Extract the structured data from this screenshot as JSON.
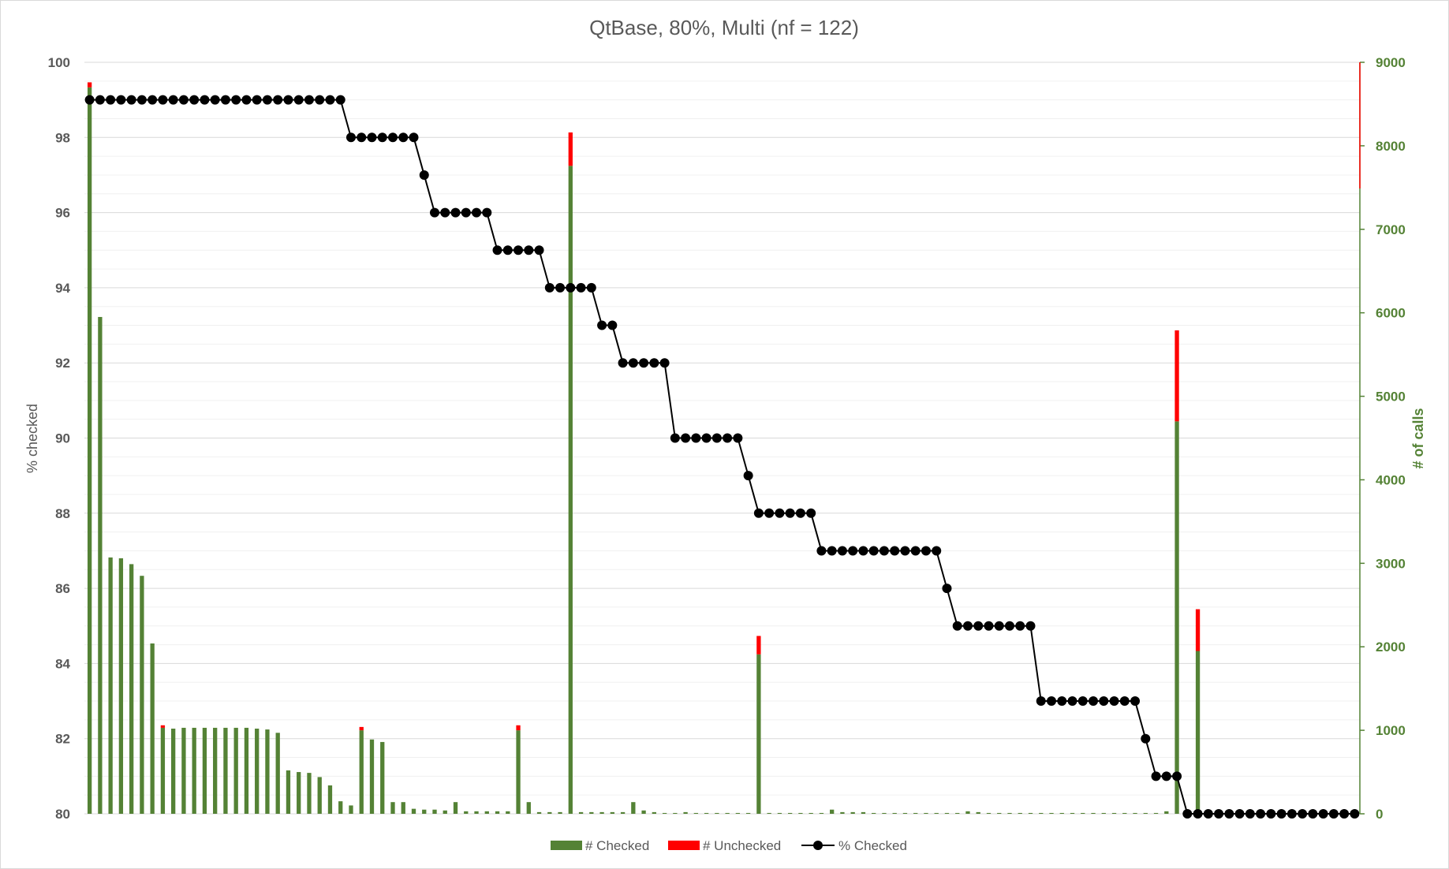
{
  "chart_data": {
    "type": "bar",
    "title": "QtBase, 80%, Multi (nf = 122)",
    "ylabel": "% checked",
    "y2label": "# of calls",
    "ylim": [
      80,
      100
    ],
    "y2lim": [
      0,
      9000
    ],
    "yticks": [
      "80",
      "82",
      "84",
      "86",
      "88",
      "90",
      "92",
      "94",
      "96",
      "98",
      "100"
    ],
    "y2ticks": [
      "0",
      "1000",
      "2000",
      "3000",
      "4000",
      "5000",
      "6000",
      "7000",
      "8000",
      "9000"
    ],
    "grid": true,
    "legend_position": "bottom",
    "colors": {
      "checked": "#548235",
      "unchecked": "#ff0000",
      "pct": "#000000",
      "right_axis": "#548235"
    },
    "series": [
      {
        "name": "# Checked",
        "axis": "right",
        "values": [
          8700,
          5950,
          3070,
          3060,
          2990,
          2850,
          2040,
          1030,
          1020,
          1030,
          1030,
          1030,
          1030,
          1030,
          1030,
          1030,
          1020,
          1010,
          970,
          520,
          500,
          490,
          440,
          340,
          150,
          100,
          1000,
          890,
          860,
          140,
          140,
          60,
          50,
          50,
          40,
          140,
          30,
          30,
          30,
          30,
          30,
          1000,
          140,
          20,
          20,
          20,
          7760,
          20,
          20,
          20,
          20,
          20,
          140,
          40,
          20,
          10,
          10,
          20,
          10,
          10,
          10,
          10,
          10,
          10,
          1910,
          10,
          10,
          10,
          10,
          10,
          10,
          50,
          20,
          20,
          20,
          10,
          10,
          10,
          10,
          10,
          10,
          10,
          10,
          10,
          30,
          20,
          10,
          10,
          10,
          10,
          10,
          10,
          10,
          10,
          10,
          10,
          10,
          10,
          10,
          10,
          10,
          10,
          10,
          30,
          4700,
          10,
          1950,
          10,
          10,
          10,
          10,
          10,
          10,
          10,
          10,
          10,
          10,
          10,
          10,
          10,
          10,
          10,
          10
        ],
        "has_right_axis": true
      },
      {
        "name": "# Unchecked",
        "axis": "right",
        "values": [
          60,
          0,
          0,
          0,
          0,
          0,
          0,
          30,
          0,
          0,
          0,
          0,
          0,
          0,
          0,
          0,
          0,
          0,
          0,
          0,
          0,
          0,
          0,
          0,
          0,
          0,
          40,
          0,
          0,
          0,
          0,
          0,
          0,
          0,
          0,
          0,
          0,
          0,
          0,
          0,
          0,
          60,
          0,
          0,
          0,
          0,
          400,
          0,
          0,
          0,
          0,
          0,
          0,
          0,
          0,
          0,
          0,
          0,
          0,
          0,
          0,
          0,
          0,
          0,
          220,
          0,
          0,
          0,
          0,
          0,
          0,
          0,
          0,
          0,
          0,
          0,
          0,
          0,
          0,
          0,
          0,
          0,
          0,
          0,
          0,
          0,
          0,
          0,
          0,
          0,
          0,
          0,
          0,
          0,
          0,
          0,
          0,
          0,
          0,
          0,
          0,
          0,
          0,
          0,
          1090,
          0,
          500,
          0,
          0,
          0,
          0,
          0,
          0,
          0,
          0,
          0,
          0,
          0,
          0,
          0,
          0,
          0,
          0
        ]
      },
      {
        "name": "% Checked",
        "axis": "left",
        "type": "line",
        "values": [
          99,
          99,
          99,
          99,
          99,
          99,
          99,
          99,
          99,
          99,
          99,
          99,
          99,
          99,
          99,
          99,
          99,
          99,
          99,
          99,
          99,
          99,
          99,
          99,
          99,
          98,
          98,
          98,
          98,
          98,
          98,
          98,
          97,
          96,
          96,
          96,
          96,
          96,
          96,
          95,
          95,
          95,
          95,
          95,
          94,
          94,
          94,
          94,
          94,
          93,
          93,
          92,
          92,
          92,
          92,
          92,
          90,
          90,
          90,
          90,
          90,
          90,
          90,
          89,
          88,
          88,
          88,
          88,
          88,
          88,
          87,
          87,
          87,
          87,
          87,
          87,
          87,
          87,
          87,
          87,
          87,
          87,
          86,
          85,
          85,
          85,
          85,
          85,
          85,
          85,
          85,
          83,
          83,
          83,
          83,
          83,
          83,
          83,
          83,
          83,
          83,
          82,
          81,
          81,
          81,
          80,
          80,
          80,
          80,
          80,
          80,
          80,
          80,
          80,
          80,
          80,
          80,
          80,
          80,
          80,
          80,
          80
        ]
      }
    ]
  }
}
